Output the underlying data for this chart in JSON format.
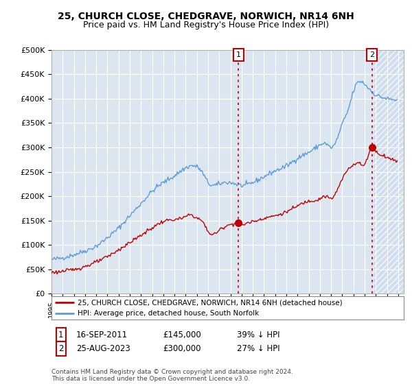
{
  "title": "25, CHURCH CLOSE, CHEDGRAVE, NORWICH, NR14 6NH",
  "subtitle": "Price paid vs. HM Land Registry's House Price Index (HPI)",
  "ylabel_ticks": [
    "£0",
    "£50K",
    "£100K",
    "£150K",
    "£200K",
    "£250K",
    "£300K",
    "£350K",
    "£400K",
    "£450K",
    "£500K"
  ],
  "ytick_values": [
    0,
    50000,
    100000,
    150000,
    200000,
    250000,
    300000,
    350000,
    400000,
    450000,
    500000
  ],
  "ylim": [
    0,
    500000
  ],
  "xlim_start": 1995.0,
  "xlim_end": 2026.5,
  "hpi_color": "#5b9bd5",
  "price_color": "#c00000",
  "vline_color": "#c00000",
  "transaction1_date": 2011.71,
  "transaction1_price": 145000,
  "transaction2_date": 2023.65,
  "transaction2_price": 300000,
  "legend_line1": "25, CHURCH CLOSE, CHEDGRAVE, NORWICH, NR14 6NH (detached house)",
  "legend_line2": "HPI: Average price, detached house, South Norfolk",
  "ann1_date": "16-SEP-2011",
  "ann1_price": "£145,000",
  "ann1_note": "39% ↓ HPI",
  "ann2_date": "25-AUG-2023",
  "ann2_price": "£300,000",
  "ann2_note": "27% ↓ HPI",
  "footer": "Contains HM Land Registry data © Crown copyright and database right 2024.\nThis data is licensed under the Open Government Licence v3.0.",
  "background_color": "#dce6f1",
  "hatch_color": "#c8d8ec",
  "title_fontsize": 10,
  "subtitle_fontsize": 9,
  "hpi_seed": 42,
  "price_seed": 123
}
